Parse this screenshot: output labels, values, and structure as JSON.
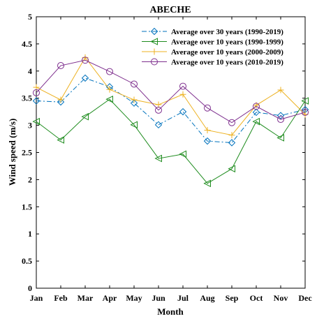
{
  "chart_data": {
    "type": "line",
    "title": "ABECHE",
    "xlabel": "Month",
    "ylabel": "Wind speed (m/s)",
    "ylim": [
      0,
      5
    ],
    "yticks": [
      "0",
      "0.5",
      "1",
      "1.5",
      "2",
      "2.5",
      "3",
      "3.5",
      "4",
      "4.5",
      "5"
    ],
    "grid": false,
    "legend_position": "top-right",
    "categories": [
      "Jan",
      "Feb",
      "Mar",
      "Apr",
      "May",
      "Jun",
      "Jul",
      "Aug",
      "Sep",
      "Oct",
      "Nov",
      "Dec"
    ],
    "series": [
      {
        "name": "Average over 30 years (1990-2019)",
        "color": "#0072BD",
        "line_style": "dashdot",
        "marker": "diamond",
        "values": [
          3.45,
          3.43,
          3.87,
          3.71,
          3.41,
          3.01,
          3.25,
          2.71,
          2.68,
          3.24,
          3.18,
          3.29
        ]
      },
      {
        "name": "Average over 10 years (1990-1999)",
        "color": "#1E8C1E",
        "line_style": "solid",
        "marker": "triangle-left",
        "values": [
          3.07,
          2.73,
          3.16,
          3.48,
          3.01,
          2.39,
          2.47,
          1.93,
          2.2,
          3.07,
          2.77,
          3.45
        ]
      },
      {
        "name": "Average over 10 years (2000-2009)",
        "color": "#EDB120",
        "line_style": "solid",
        "marker": "plus",
        "values": [
          3.7,
          3.47,
          4.25,
          3.66,
          3.47,
          3.38,
          3.57,
          2.91,
          2.82,
          3.37,
          3.65,
          3.2
        ]
      },
      {
        "name": "Average over 10 years (2010-2019)",
        "color": "#7E2F8E",
        "line_style": "solid",
        "marker": "circle",
        "values": [
          3.6,
          4.1,
          4.2,
          3.99,
          3.76,
          3.28,
          3.72,
          3.32,
          3.05,
          3.35,
          3.11,
          3.24
        ]
      }
    ]
  }
}
